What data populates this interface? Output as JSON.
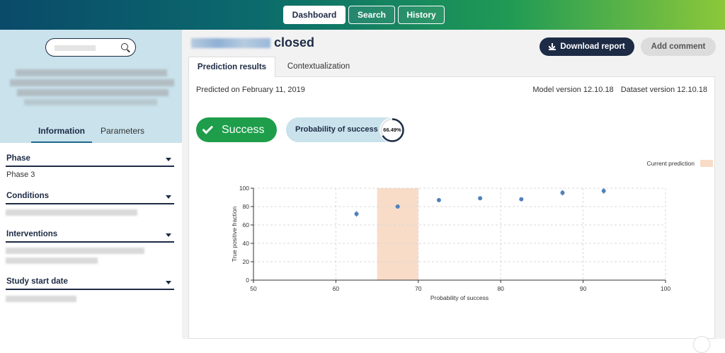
{
  "nav": {
    "dashboard": "Dashboard",
    "search": "Search",
    "history": "History"
  },
  "sidebar": {
    "tabs": {
      "information": "Information",
      "parameters": "Parameters"
    },
    "sections": [
      {
        "title": "Phase",
        "value": "Phase 3"
      },
      {
        "title": "Conditions",
        "value": ""
      },
      {
        "title": "Interventions",
        "value": ""
      },
      {
        "title": "Study start date",
        "value": ""
      }
    ]
  },
  "main": {
    "title_suffix": "closed",
    "download_label": "Download report",
    "comment_label": "Add comment",
    "tabs": {
      "prediction": "Prediction results",
      "context": "Contextualization"
    },
    "predicted_on": "Predicted on February 11, 2019",
    "model_version": "Model version 12.10.18",
    "dataset_version": "Dataset version 12.10.18",
    "outcome": "Success",
    "probability_label": "Probability of success",
    "probability_value": "66.49%",
    "probability_fraction": 0.6649,
    "legend_current": "Current prediction"
  },
  "colors": {
    "brand_dark": "#1d2b45",
    "success": "#1e9e4a",
    "highlight": "#f8dcc8",
    "point": "#4f81bd"
  },
  "chart_data": {
    "type": "scatter",
    "xlabel": "Probability of success",
    "ylabel": "True positive fraction",
    "xlim": [
      50,
      100
    ],
    "ylim": [
      0,
      100
    ],
    "xticks": [
      50,
      60,
      70,
      80,
      90,
      100
    ],
    "yticks": [
      0,
      20,
      40,
      60,
      80,
      100
    ],
    "grid": true,
    "highlight_range": [
      65,
      70
    ],
    "series": [
      {
        "x": [
          62.5,
          67.5,
          72.5,
          77.5,
          82.5,
          87.5,
          92.5
        ],
        "y": [
          72,
          80,
          87,
          89,
          88,
          95,
          97
        ],
        "err": [
          3,
          1,
          1,
          1,
          2,
          3,
          3
        ]
      }
    ]
  }
}
